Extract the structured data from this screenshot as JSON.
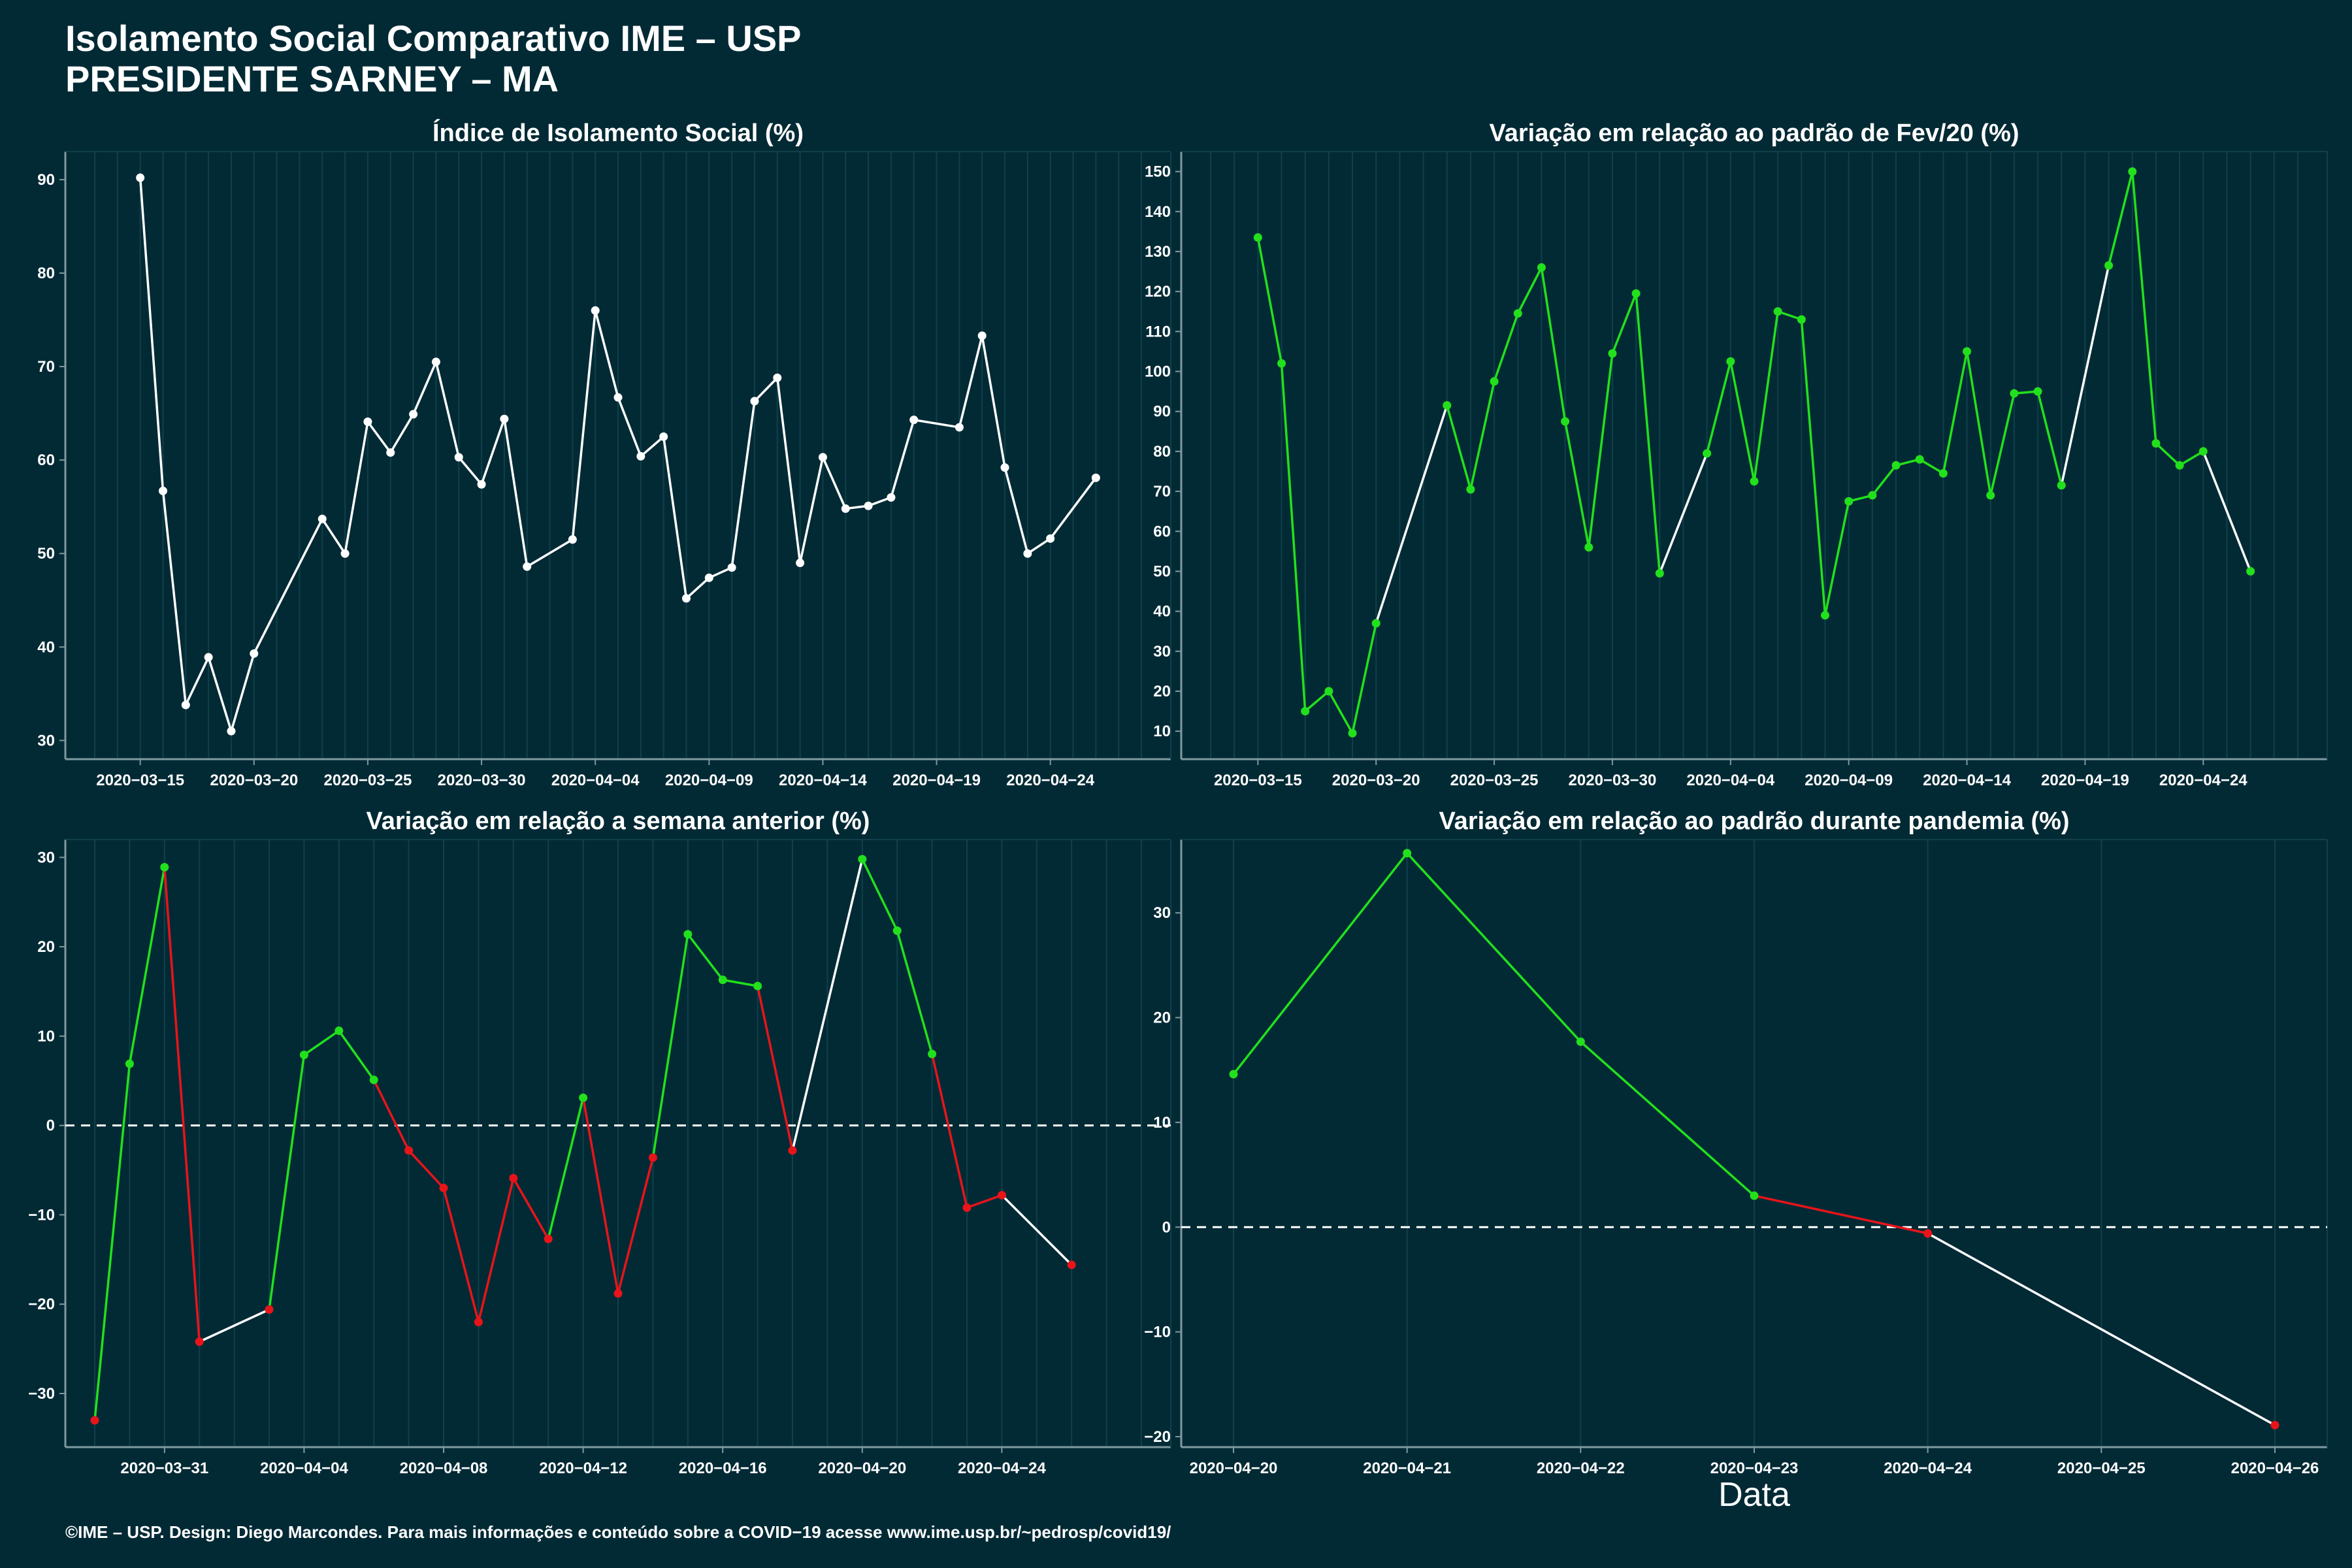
{
  "header": {
    "title_line1": "Isolamento Social Comparativo IME – USP",
    "title_line2": "PRESIDENTE SARNEY – MA"
  },
  "footer": {
    "text": "©IME – USP. Design: Diego Marcondes. Para mais informações e conteúdo sobre a COVID−19 acesse www.ime.usp.br/~pedrosp/covid19/"
  },
  "colors": {
    "background": "#022a35",
    "white": "#ffffff",
    "green": "#22e01c",
    "red": "#e8141a",
    "axis": "#7f9aa0",
    "grid": "#10404a"
  },
  "chart_data": [
    {
      "type": "line",
      "title": "Índice de Isolamento Social (%)",
      "xlabel": "",
      "ylabel": "",
      "xlim": [
        "2020-03-13",
        "2020-04-28"
      ],
      "ylim": [
        28,
        93
      ],
      "yticks": [
        30,
        40,
        50,
        60,
        70,
        80,
        90
      ],
      "xticks": [
        "2020-03-15",
        "2020-03-20",
        "2020-03-25",
        "2020-03-30",
        "2020-04-04",
        "2020-04-09",
        "2020-04-14",
        "2020-04-19",
        "2020-04-24"
      ],
      "dashed_zero": false,
      "points": [
        {
          "x": "2020-03-15",
          "y": 90.2,
          "c": "white"
        },
        {
          "x": "2020-03-16",
          "y": 56.7,
          "c": "white"
        },
        {
          "x": "2020-03-17",
          "y": 33.8,
          "c": "white"
        },
        {
          "x": "2020-03-18",
          "y": 38.9,
          "c": "white"
        },
        {
          "x": "2020-03-19",
          "y": 31.0,
          "c": "white"
        },
        {
          "x": "2020-03-20",
          "y": 39.3,
          "c": "white"
        },
        {
          "x": "2020-03-23",
          "y": 53.7,
          "c": "white"
        },
        {
          "x": "2020-03-24",
          "y": 50.0,
          "c": "white"
        },
        {
          "x": "2020-03-25",
          "y": 64.1,
          "c": "white"
        },
        {
          "x": "2020-03-26",
          "y": 60.8,
          "c": "white"
        },
        {
          "x": "2020-03-27",
          "y": 64.9,
          "c": "white"
        },
        {
          "x": "2020-03-28",
          "y": 70.5,
          "c": "white"
        },
        {
          "x": "2020-03-29",
          "y": 60.3,
          "c": "white"
        },
        {
          "x": "2020-03-30",
          "y": 57.4,
          "c": "white"
        },
        {
          "x": "2020-03-31",
          "y": 64.4,
          "c": "white"
        },
        {
          "x": "2020-04-01",
          "y": 48.6,
          "c": "white"
        },
        {
          "x": "2020-04-03",
          "y": 51.5,
          "c": "white"
        },
        {
          "x": "2020-04-04",
          "y": 76.0,
          "c": "white"
        },
        {
          "x": "2020-04-05",
          "y": 66.7,
          "c": "white"
        },
        {
          "x": "2020-04-06",
          "y": 60.4,
          "c": "white"
        },
        {
          "x": "2020-04-07",
          "y": 62.5,
          "c": "white"
        },
        {
          "x": "2020-04-08",
          "y": 45.2,
          "c": "white"
        },
        {
          "x": "2020-04-09",
          "y": 47.4,
          "c": "white"
        },
        {
          "x": "2020-04-10",
          "y": 48.5,
          "c": "white"
        },
        {
          "x": "2020-04-11",
          "y": 66.3,
          "c": "white"
        },
        {
          "x": "2020-04-12",
          "y": 68.8,
          "c": "white"
        },
        {
          "x": "2020-04-13",
          "y": 49.0,
          "c": "white"
        },
        {
          "x": "2020-04-14",
          "y": 60.3,
          "c": "white"
        },
        {
          "x": "2020-04-15",
          "y": 54.8,
          "c": "white"
        },
        {
          "x": "2020-04-16",
          "y": 55.1,
          "c": "white"
        },
        {
          "x": "2020-04-17",
          "y": 56.0,
          "c": "white"
        },
        {
          "x": "2020-04-18",
          "y": 64.3,
          "c": "white"
        },
        {
          "x": "2020-04-20",
          "y": 63.5,
          "c": "white"
        },
        {
          "x": "2020-04-21",
          "y": 73.3,
          "c": "white"
        },
        {
          "x": "2020-04-22",
          "y": 59.2,
          "c": "white"
        },
        {
          "x": "2020-04-23",
          "y": 50.0,
          "c": "white"
        },
        {
          "x": "2020-04-24",
          "y": 51.6,
          "c": "white"
        },
        {
          "x": "2020-04-26",
          "y": 58.1,
          "c": "white"
        }
      ]
    },
    {
      "type": "line",
      "title": "Variação em relação ao padrão de Fev/20 (%)",
      "xlabel": "",
      "ylabel": "",
      "xlim": [
        "2020-03-13",
        "2020-04-28"
      ],
      "ylim": [
        3,
        155
      ],
      "yticks": [
        10,
        20,
        30,
        40,
        50,
        60,
        70,
        80,
        90,
        100,
        110,
        120,
        130,
        140,
        150
      ],
      "xticks": [
        "2020-03-15",
        "2020-03-20",
        "2020-03-25",
        "2020-03-30",
        "2020-04-04",
        "2020-04-09",
        "2020-04-14",
        "2020-04-19",
        "2020-04-24"
      ],
      "dashed_zero": false,
      "points": [
        {
          "x": "2020-03-15",
          "y": 133.5,
          "c": "green"
        },
        {
          "x": "2020-03-16",
          "y": 102.0,
          "c": "green"
        },
        {
          "x": "2020-03-17",
          "y": 15.0,
          "c": "green"
        },
        {
          "x": "2020-03-18",
          "y": 20.0,
          "c": "green"
        },
        {
          "x": "2020-03-19",
          "y": 9.5,
          "c": "green"
        },
        {
          "x": "2020-03-20",
          "y": 37.0,
          "c": "green"
        },
        {
          "x": "2020-03-23",
          "y": 91.5,
          "c": "green"
        },
        {
          "x": "2020-03-24",
          "y": 70.5,
          "c": "green"
        },
        {
          "x": "2020-03-25",
          "y": 97.5,
          "c": "green"
        },
        {
          "x": "2020-03-26",
          "y": 114.5,
          "c": "green"
        },
        {
          "x": "2020-03-27",
          "y": 126.0,
          "c": "green"
        },
        {
          "x": "2020-03-28",
          "y": 87.5,
          "c": "green"
        },
        {
          "x": "2020-03-29",
          "y": 56.0,
          "c": "green"
        },
        {
          "x": "2020-03-30",
          "y": 104.5,
          "c": "green"
        },
        {
          "x": "2020-03-31",
          "y": 119.5,
          "c": "green"
        },
        {
          "x": "2020-04-01",
          "y": 49.5,
          "c": "green"
        },
        {
          "x": "2020-04-03",
          "y": 79.5,
          "c": "green"
        },
        {
          "x": "2020-04-04",
          "y": 102.5,
          "c": "green"
        },
        {
          "x": "2020-04-05",
          "y": 72.5,
          "c": "green"
        },
        {
          "x": "2020-04-06",
          "y": 115.0,
          "c": "green"
        },
        {
          "x": "2020-04-07",
          "y": 113.0,
          "c": "green"
        },
        {
          "x": "2020-04-08",
          "y": 39.0,
          "c": "green"
        },
        {
          "x": "2020-04-09",
          "y": 67.5,
          "c": "green"
        },
        {
          "x": "2020-04-10",
          "y": 69.0,
          "c": "green"
        },
        {
          "x": "2020-04-11",
          "y": 76.5,
          "c": "green"
        },
        {
          "x": "2020-04-12",
          "y": 78.0,
          "c": "green"
        },
        {
          "x": "2020-04-13",
          "y": 74.5,
          "c": "green"
        },
        {
          "x": "2020-04-14",
          "y": 105.0,
          "c": "green"
        },
        {
          "x": "2020-04-15",
          "y": 69.0,
          "c": "green"
        },
        {
          "x": "2020-04-16",
          "y": 94.5,
          "c": "green"
        },
        {
          "x": "2020-04-17",
          "y": 95.0,
          "c": "green"
        },
        {
          "x": "2020-04-18",
          "y": 71.5,
          "c": "green"
        },
        {
          "x": "2020-04-20",
          "y": 126.5,
          "c": "green"
        },
        {
          "x": "2020-04-21",
          "y": 150.0,
          "c": "green"
        },
        {
          "x": "2020-04-22",
          "y": 82.0,
          "c": "green"
        },
        {
          "x": "2020-04-23",
          "y": 76.5,
          "c": "green"
        },
        {
          "x": "2020-04-24",
          "y": 80.0,
          "c": "green"
        },
        {
          "x": "2020-04-26",
          "y": 50.0,
          "c": "green"
        }
      ]
    },
    {
      "type": "line",
      "title": "Variação em relação a semana anterior (%)",
      "xlabel": "",
      "ylabel": "",
      "xlim": [
        "2020-03-29",
        "2020-04-28"
      ],
      "ylim": [
        -36,
        32
      ],
      "yticks": [
        -30,
        -20,
        -10,
        0,
        10,
        20,
        30
      ],
      "xticks": [
        "2020-03-31",
        "2020-04-04",
        "2020-04-08",
        "2020-04-12",
        "2020-04-16",
        "2020-04-20",
        "2020-04-24"
      ],
      "dashed_zero": true,
      "points": [
        {
          "x": "2020-03-29",
          "y": -33.0,
          "c": "red"
        },
        {
          "x": "2020-03-30",
          "y": 6.9,
          "c": "green"
        },
        {
          "x": "2020-03-31",
          "y": 28.9,
          "c": "green"
        },
        {
          "x": "2020-04-01",
          "y": -24.2,
          "c": "red"
        },
        {
          "x": "2020-04-03",
          "y": -20.6,
          "c": "red"
        },
        {
          "x": "2020-04-04",
          "y": 7.9,
          "c": "green"
        },
        {
          "x": "2020-04-05",
          "y": 10.6,
          "c": "green"
        },
        {
          "x": "2020-04-06",
          "y": 5.1,
          "c": "green"
        },
        {
          "x": "2020-04-07",
          "y": -2.8,
          "c": "red"
        },
        {
          "x": "2020-04-08",
          "y": -7.0,
          "c": "red"
        },
        {
          "x": "2020-04-09",
          "y": -22.0,
          "c": "red"
        },
        {
          "x": "2020-04-10",
          "y": -5.9,
          "c": "red"
        },
        {
          "x": "2020-04-11",
          "y": -12.7,
          "c": "red"
        },
        {
          "x": "2020-04-12",
          "y": 3.1,
          "c": "green"
        },
        {
          "x": "2020-04-13",
          "y": -18.8,
          "c": "red"
        },
        {
          "x": "2020-04-14",
          "y": -3.6,
          "c": "red"
        },
        {
          "x": "2020-04-15",
          "y": 21.4,
          "c": "green"
        },
        {
          "x": "2020-04-16",
          "y": 16.3,
          "c": "green"
        },
        {
          "x": "2020-04-17",
          "y": 15.6,
          "c": "green"
        },
        {
          "x": "2020-04-18",
          "y": -2.8,
          "c": "red"
        },
        {
          "x": "2020-04-20",
          "y": 29.8,
          "c": "green"
        },
        {
          "x": "2020-04-21",
          "y": 21.8,
          "c": "green"
        },
        {
          "x": "2020-04-22",
          "y": 8.0,
          "c": "green"
        },
        {
          "x": "2020-04-23",
          "y": -9.2,
          "c": "red"
        },
        {
          "x": "2020-04-24",
          "y": -7.8,
          "c": "red"
        },
        {
          "x": "2020-04-26",
          "y": -15.6,
          "c": "red"
        }
      ]
    },
    {
      "type": "line",
      "title": "Variação em relação ao padrão durante pandemia (%)",
      "xlabel": "Data",
      "ylabel": "",
      "xlim": [
        "2020-04-20",
        "2020-04-26"
      ],
      "ylim": [
        -21,
        37
      ],
      "yticks": [
        -20,
        -10,
        0,
        10,
        20,
        30
      ],
      "xticks": [
        "2020-04-20",
        "2020-04-21",
        "2020-04-22",
        "2020-04-23",
        "2020-04-24",
        "2020-04-25",
        "2020-04-26"
      ],
      "dashed_zero": true,
      "points": [
        {
          "x": "2020-04-20",
          "y": 14.6,
          "c": "green"
        },
        {
          "x": "2020-04-21",
          "y": 35.7,
          "c": "green"
        },
        {
          "x": "2020-04-22",
          "y": 17.7,
          "c": "green"
        },
        {
          "x": "2020-04-23",
          "y": 3.0,
          "c": "green"
        },
        {
          "x": "2020-04-24",
          "y": -0.6,
          "c": "red"
        },
        {
          "x": "2020-04-26",
          "y": -18.9,
          "c": "red"
        }
      ]
    }
  ]
}
